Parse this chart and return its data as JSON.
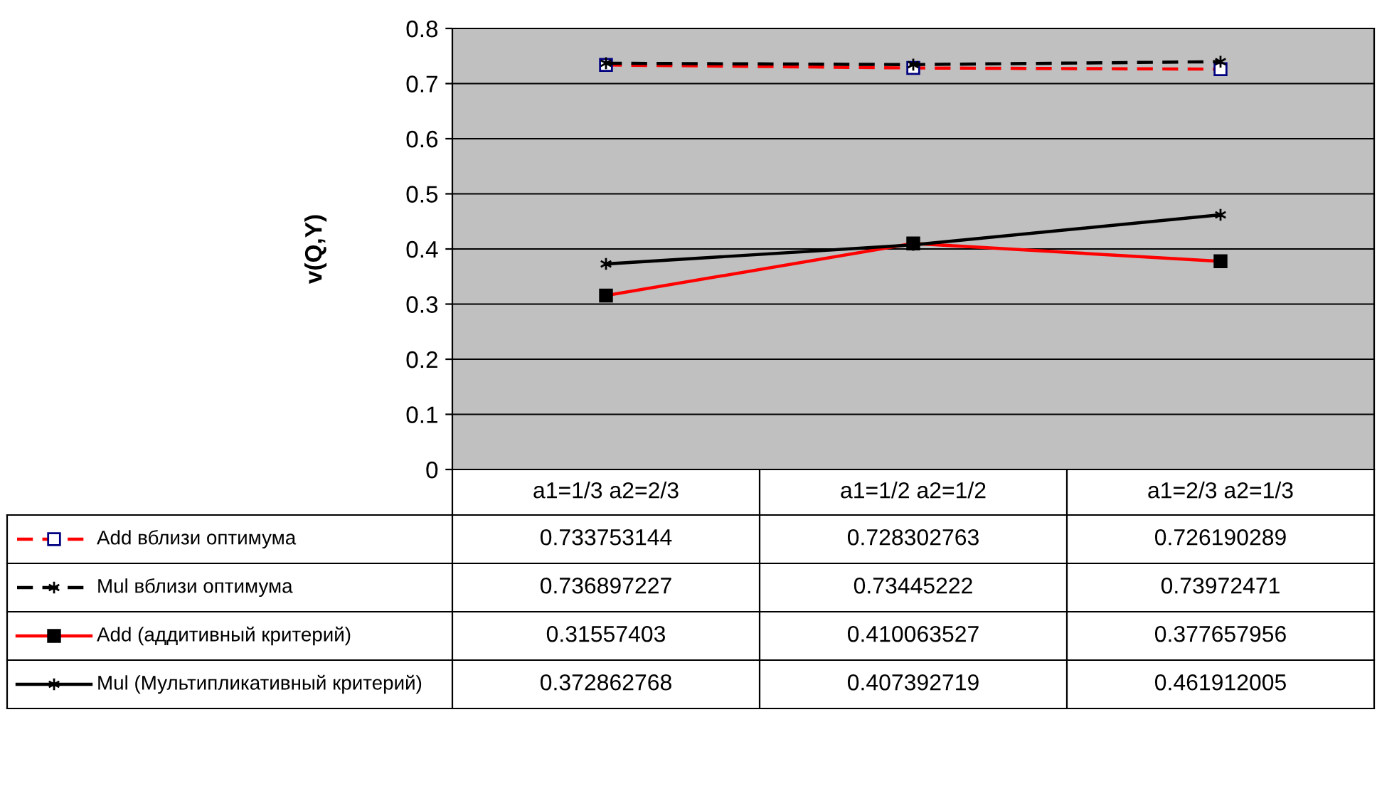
{
  "chart_data": {
    "type": "line",
    "ylabel": "v(Q,Y)",
    "categories": [
      "a1=1/3 a2=2/3",
      "a1=1/2 a2=1/2",
      "a1=2/3 a2=1/3"
    ],
    "ylim": [
      0,
      0.8
    ],
    "yticks": [
      0,
      0.1,
      0.2,
      0.3,
      0.4,
      0.5,
      0.6,
      0.7,
      0.8
    ],
    "grid": "y",
    "legend": "bottom",
    "data_labels": true,
    "series": [
      {
        "name": "Add вблизи оптимума",
        "color": "#ff0000",
        "line_style": "dashed",
        "marker": "square",
        "values": [
          0.733753144,
          0.728302763,
          0.726190289
        ]
      },
      {
        "name": "Mul вблизи оптимума",
        "color": "#000000",
        "line_style": "dashed",
        "marker": "cross",
        "values": [
          0.736897227,
          0.73445222,
          0.73972471
        ]
      },
      {
        "name": "Add (аддитивный критерий)",
        "color": "#ff0000",
        "line_style": "solid",
        "marker": "square",
        "values": [
          0.31557403,
          0.410063527,
          0.377657956
        ]
      },
      {
        "name": "Mul (Мультипликативный критерий)",
        "color": "#000000",
        "line_style": "solid",
        "marker": "cross",
        "values": [
          0.372862768,
          0.407392719,
          0.461912005
        ]
      }
    ]
  }
}
